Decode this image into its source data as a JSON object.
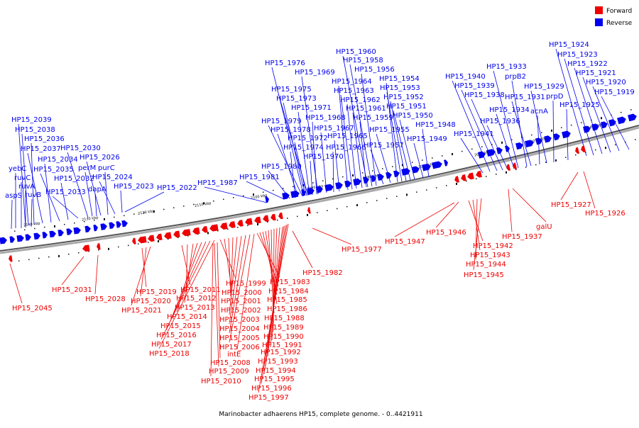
{
  "legend": {
    "forward_label": "Forward",
    "reverse_label": "Reverse",
    "forward_color": "#ee0000",
    "reverse_color": "#0000ee"
  },
  "caption": "Marinobacter adhaerens HP15, complete genome. - 0..4421911",
  "axis": {
    "ticks": [
      "2140 kbp",
      "2130 kbp",
      "2120 kbp",
      "2110 kbp",
      "2100 kbp",
      "2090 kbp",
      "2080 kbp",
      "2070 kbp",
      "2060 kbp",
      "2050 kbp",
      "2040 kbp"
    ]
  },
  "genes": {
    "reverse": [
      "HP15_2039",
      "HP15_2038",
      "HP15_2036",
      "HP15_2037",
      "HP15_2034",
      "yebC",
      "HP15_2035",
      "ruvC",
      "ruvA",
      "HP15_2032",
      "aspS",
      "ruvB",
      "HP15_2033",
      "HP15_2030",
      "perM",
      "HP15_2026",
      "purC",
      "dapA",
      "HP15_2024",
      "HP15_2023",
      "HP15_2022",
      "HP15_1987",
      "HP15_1981",
      "HP15_1980",
      "HP15_1974",
      "HP15_1978",
      "HP15_1979",
      "HP15_1972",
      "HP15_1970",
      "HP15_1971",
      "HP15_1973",
      "HP15_1975",
      "HP15_1976",
      "HP15_1969",
      "HP15_1968",
      "HP15_1967",
      "HP15_1966",
      "HP15_1965",
      "HP15_1964",
      "HP15_1963",
      "HP15_1962",
      "HP15_1961",
      "HP15_1960",
      "HP15_1958",
      "HP15_1956",
      "HP15_1959",
      "HP15_1957",
      "HP15_1955",
      "HP15_1954",
      "HP15_1953",
      "HP15_1952",
      "HP15_1951",
      "HP15_1950",
      "HP15_1948",
      "HP15_1949",
      "HP15_1941",
      "HP15_1940",
      "HP15_1939",
      "HP15_1938",
      "HP15_1936",
      "HP15_1934",
      "HP15_1933",
      "prpB2",
      "HP15_1931",
      "acnA",
      "HP15_1929",
      "prpD",
      "HP15_1925",
      "HP15_1924",
      "HP15_1923",
      "HP15_1922",
      "HP15_1921",
      "HP15_1920",
      "HP15_1919"
    ],
    "forward": [
      "HP15_2045",
      "HP15_2031",
      "HP15_2028",
      "HP15_2019",
      "HP15_2020",
      "HP15_2021",
      "HP15_2011",
      "HP15_2012",
      "HP15_2013",
      "HP15_2014",
      "HP15_2015",
      "HP15_2016",
      "HP15_2017",
      "HP15_2018",
      "HP15_1999",
      "HP15_2000",
      "HP15_2001",
      "HP15_2002",
      "HP15_2003",
      "HP15_2004",
      "HP15_2005",
      "HP15_2006",
      "intE",
      "HP15_2008",
      "HP15_2009",
      "HP15_2010",
      "HP15_1983",
      "HP15_1984",
      "HP15_1985",
      "HP15_1986",
      "HP15_1988",
      "HP15_1989",
      "HP15_1990",
      "HP15_1991",
      "HP15_1992",
      "HP15_1993",
      "HP15_1994",
      "HP15_1995",
      "HP15_1996",
      "HP15_1997",
      "HP15_1982",
      "HP15_1977",
      "HP15_1947",
      "HP15_1946",
      "HP15_1942",
      "HP15_1943",
      "HP15_1944",
      "HP15_1945",
      "HP15_1937",
      "galU",
      "HP15_1927",
      "HP15_1926"
    ]
  }
}
